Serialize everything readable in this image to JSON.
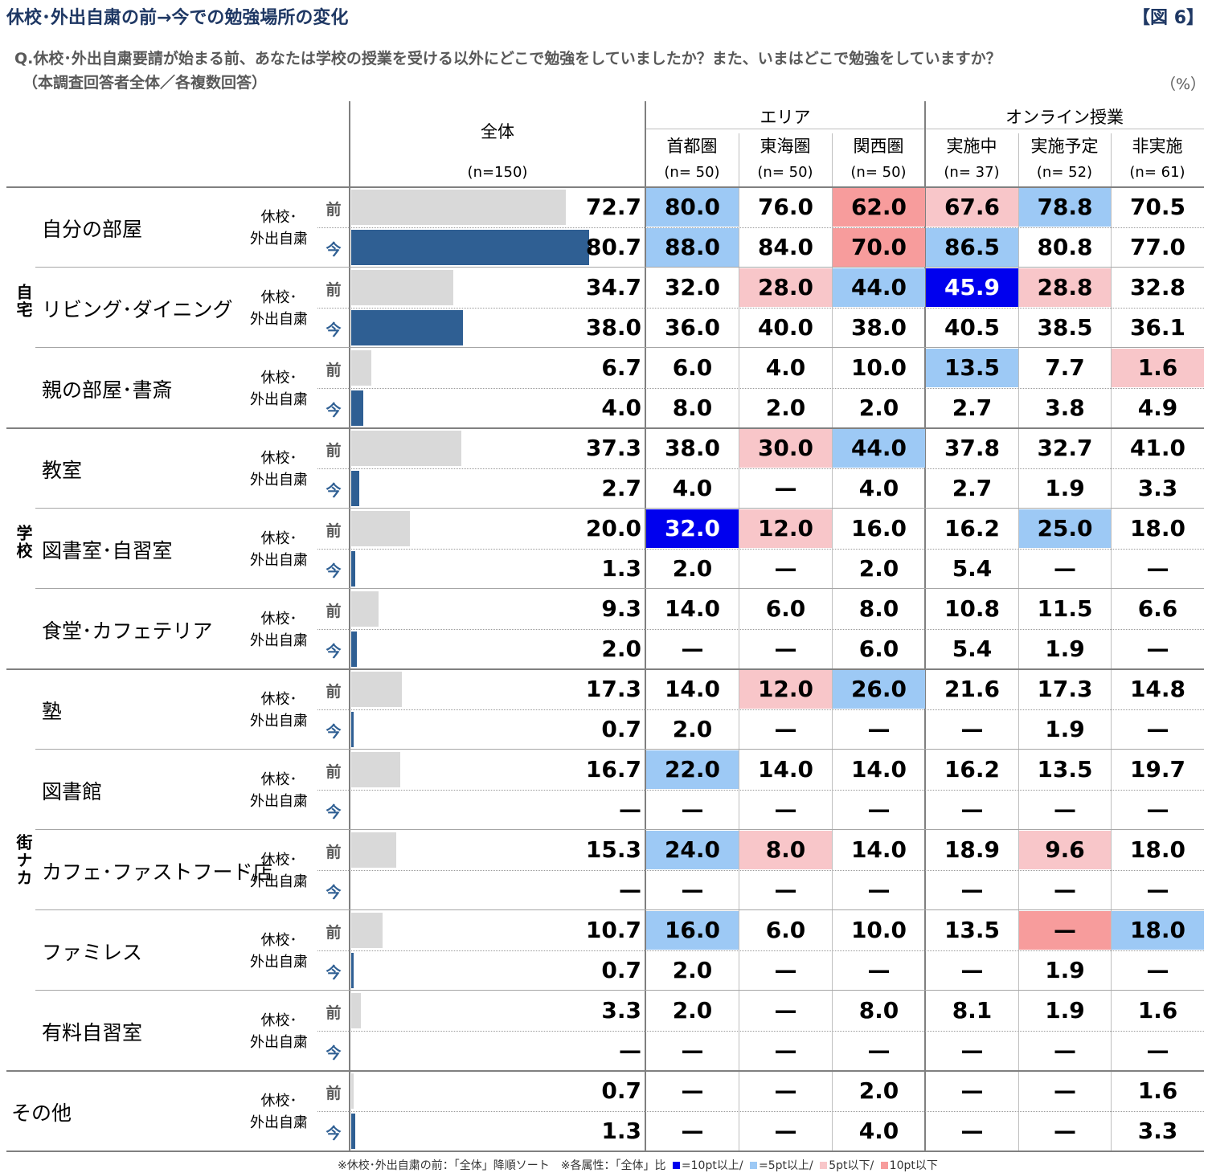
{
  "title": "休校･外出自粛の前→今での勉強場所の変化",
  "figure_label": "【図 6】",
  "question": "Q.休校･外出自粛要請が始まる前、あなたは学校の授業を受ける以外にどこで勉強をしていましたか？また、いまはどこで勉強をしていますか？",
  "base": "（本調査回答者全体／各複数回答）",
  "unit": "（%）",
  "header": {
    "total_label": "全体",
    "total_n": "(n=150)",
    "groups": [
      "エリア",
      "オンライン授業"
    ],
    "columns": [
      {
        "label": "首都圏",
        "n": "(n= 50)"
      },
      {
        "label": "東海圏",
        "n": "(n= 50)"
      },
      {
        "label": "関西圏",
        "n": "(n= 50)"
      },
      {
        "label": "実施中",
        "n": "(n= 37)"
      },
      {
        "label": "実施予定",
        "n": "(n= 52)"
      },
      {
        "label": "非実施",
        "n": "(n= 61)"
      }
    ]
  },
  "row_label_top": "休校･",
  "row_label_bottom": "外出自粛",
  "before_mark": "前",
  "now_mark": "今",
  "colors": {
    "before_bar": "#d9d9d9",
    "now_bar": "#2f5f93",
    "plus10": "#0000ee",
    "plus5": "#9dc9f5",
    "minus5": "#f8c6c9",
    "minus10": "#f79c9c",
    "header_text": "#1f3864"
  },
  "chart_data": {
    "type": "table",
    "groups": [
      {
        "name": "自宅",
        "items": [
          "自分の部屋",
          "リビング･ダイニング",
          "親の部屋･書斎"
        ]
      },
      {
        "name": "学校",
        "items": [
          "教室",
          "図書室･自習室",
          "食堂･カフェテリア"
        ]
      },
      {
        "name": "街ナカ",
        "items": [
          "塾",
          "図書館",
          "カフェ･ファストフード店",
          "ファミレス",
          "有料自習室"
        ]
      },
      {
        "name": "",
        "items": [
          "その他"
        ]
      }
    ],
    "rows": [
      {
        "item": "自分の部屋",
        "before": {
          "total": "72.7",
          "cells": [
            "80.0",
            "76.0",
            "62.0",
            "67.6",
            "78.8",
            "70.5"
          ],
          "hl": [
            "p5",
            "",
            "m10",
            "m5",
            "p5",
            ""
          ]
        },
        "now": {
          "total": "80.7",
          "cells": [
            "88.0",
            "84.0",
            "70.0",
            "86.5",
            "80.8",
            "77.0"
          ],
          "hl": [
            "p5",
            "",
            "m10",
            "p5",
            "",
            ""
          ]
        }
      },
      {
        "item": "リビング･ダイニング",
        "before": {
          "total": "34.7",
          "cells": [
            "32.0",
            "28.0",
            "44.0",
            "45.9",
            "28.8",
            "32.8"
          ],
          "hl": [
            "",
            "m5",
            "p5",
            "p10",
            "m5",
            ""
          ]
        },
        "now": {
          "total": "38.0",
          "cells": [
            "36.0",
            "40.0",
            "38.0",
            "40.5",
            "38.5",
            "36.1"
          ],
          "hl": [
            "",
            "",
            "",
            "",
            "",
            ""
          ]
        }
      },
      {
        "item": "親の部屋･書斎",
        "before": {
          "total": "6.7",
          "cells": [
            "6.0",
            "4.0",
            "10.0",
            "13.5",
            "7.7",
            "1.6"
          ],
          "hl": [
            "",
            "",
            "",
            "p5",
            "",
            "m5"
          ]
        },
        "now": {
          "total": "4.0",
          "cells": [
            "8.0",
            "2.0",
            "2.0",
            "2.7",
            "3.8",
            "4.9"
          ],
          "hl": [
            "",
            "",
            "",
            "",
            "",
            ""
          ]
        }
      },
      {
        "item": "教室",
        "before": {
          "total": "37.3",
          "cells": [
            "38.0",
            "30.0",
            "44.0",
            "37.8",
            "32.7",
            "41.0"
          ],
          "hl": [
            "",
            "m5",
            "p5",
            "",
            "",
            ""
          ]
        },
        "now": {
          "total": "2.7",
          "cells": [
            "4.0",
            "—",
            "4.0",
            "2.7",
            "1.9",
            "3.3"
          ],
          "hl": [
            "",
            "",
            "",
            "",
            "",
            ""
          ]
        }
      },
      {
        "item": "図書室･自習室",
        "before": {
          "total": "20.0",
          "cells": [
            "32.0",
            "12.0",
            "16.0",
            "16.2",
            "25.0",
            "18.0"
          ],
          "hl": [
            "p10",
            "m5",
            "",
            "",
            "p5",
            ""
          ]
        },
        "now": {
          "total": "1.3",
          "cells": [
            "2.0",
            "—",
            "2.0",
            "5.4",
            "—",
            "—"
          ],
          "hl": [
            "",
            "",
            "",
            "",
            "",
            ""
          ]
        }
      },
      {
        "item": "食堂･カフェテリア",
        "before": {
          "total": "9.3",
          "cells": [
            "14.0",
            "6.0",
            "8.0",
            "10.8",
            "11.5",
            "6.6"
          ],
          "hl": [
            "",
            "",
            "",
            "",
            "",
            ""
          ]
        },
        "now": {
          "total": "2.0",
          "cells": [
            "—",
            "—",
            "6.0",
            "5.4",
            "1.9",
            "—"
          ],
          "hl": [
            "",
            "",
            "",
            "",
            "",
            ""
          ]
        }
      },
      {
        "item": "塾",
        "before": {
          "total": "17.3",
          "cells": [
            "14.0",
            "12.0",
            "26.0",
            "21.6",
            "17.3",
            "14.8"
          ],
          "hl": [
            "",
            "m5",
            "p5",
            "",
            "",
            ""
          ]
        },
        "now": {
          "total": "0.7",
          "cells": [
            "2.0",
            "—",
            "—",
            "—",
            "1.9",
            "—"
          ],
          "hl": [
            "",
            "",
            "",
            "",
            "",
            ""
          ]
        }
      },
      {
        "item": "図書館",
        "before": {
          "total": "16.7",
          "cells": [
            "22.0",
            "14.0",
            "14.0",
            "16.2",
            "13.5",
            "19.7"
          ],
          "hl": [
            "p5",
            "",
            "",
            "",
            "",
            ""
          ]
        },
        "now": {
          "total": "—",
          "cells": [
            "—",
            "—",
            "—",
            "—",
            "—",
            "—"
          ],
          "hl": [
            "",
            "",
            "",
            "",
            "",
            ""
          ]
        }
      },
      {
        "item": "カフェ･ファストフード店",
        "before": {
          "total": "15.3",
          "cells": [
            "24.0",
            "8.0",
            "14.0",
            "18.9",
            "9.6",
            "18.0"
          ],
          "hl": [
            "p5",
            "m5",
            "",
            "",
            "m5",
            ""
          ]
        },
        "now": {
          "total": "—",
          "cells": [
            "—",
            "—",
            "—",
            "—",
            "—",
            "—"
          ],
          "hl": [
            "",
            "",
            "",
            "",
            "",
            ""
          ]
        }
      },
      {
        "item": "ファミレス",
        "before": {
          "total": "10.7",
          "cells": [
            "16.0",
            "6.0",
            "10.0",
            "13.5",
            "—",
            "18.0"
          ],
          "hl": [
            "p5",
            "",
            "",
            "",
            "m10",
            "p5"
          ]
        },
        "now": {
          "total": "0.7",
          "cells": [
            "2.0",
            "—",
            "—",
            "—",
            "1.9",
            "—"
          ],
          "hl": [
            "",
            "",
            "",
            "",
            "",
            ""
          ]
        }
      },
      {
        "item": "有料自習室",
        "before": {
          "total": "3.3",
          "cells": [
            "2.0",
            "—",
            "8.0",
            "8.1",
            "1.9",
            "1.6"
          ],
          "hl": [
            "",
            "",
            "",
            "",
            "",
            ""
          ]
        },
        "now": {
          "total": "—",
          "cells": [
            "—",
            "—",
            "—",
            "—",
            "—",
            "—"
          ],
          "hl": [
            "",
            "",
            "",
            "",
            "",
            ""
          ]
        }
      },
      {
        "item": "その他",
        "before": {
          "total": "0.7",
          "cells": [
            "—",
            "—",
            "2.0",
            "—",
            "—",
            "1.6"
          ],
          "hl": [
            "",
            "",
            "",
            "",
            "",
            ""
          ]
        },
        "now": {
          "total": "1.3",
          "cells": [
            "—",
            "—",
            "4.0",
            "—",
            "—",
            "3.3"
          ],
          "hl": [
            "",
            "",
            "",
            "",
            "",
            ""
          ]
        }
      }
    ]
  },
  "footnote": {
    "sort_note": "※休校･外出自粛の前：「全体」降順ソート　※各属性：「全体」比",
    "legend": [
      "=10pt以上/",
      "=5pt以上/",
      "5pt以下/",
      "10pt以下"
    ]
  }
}
